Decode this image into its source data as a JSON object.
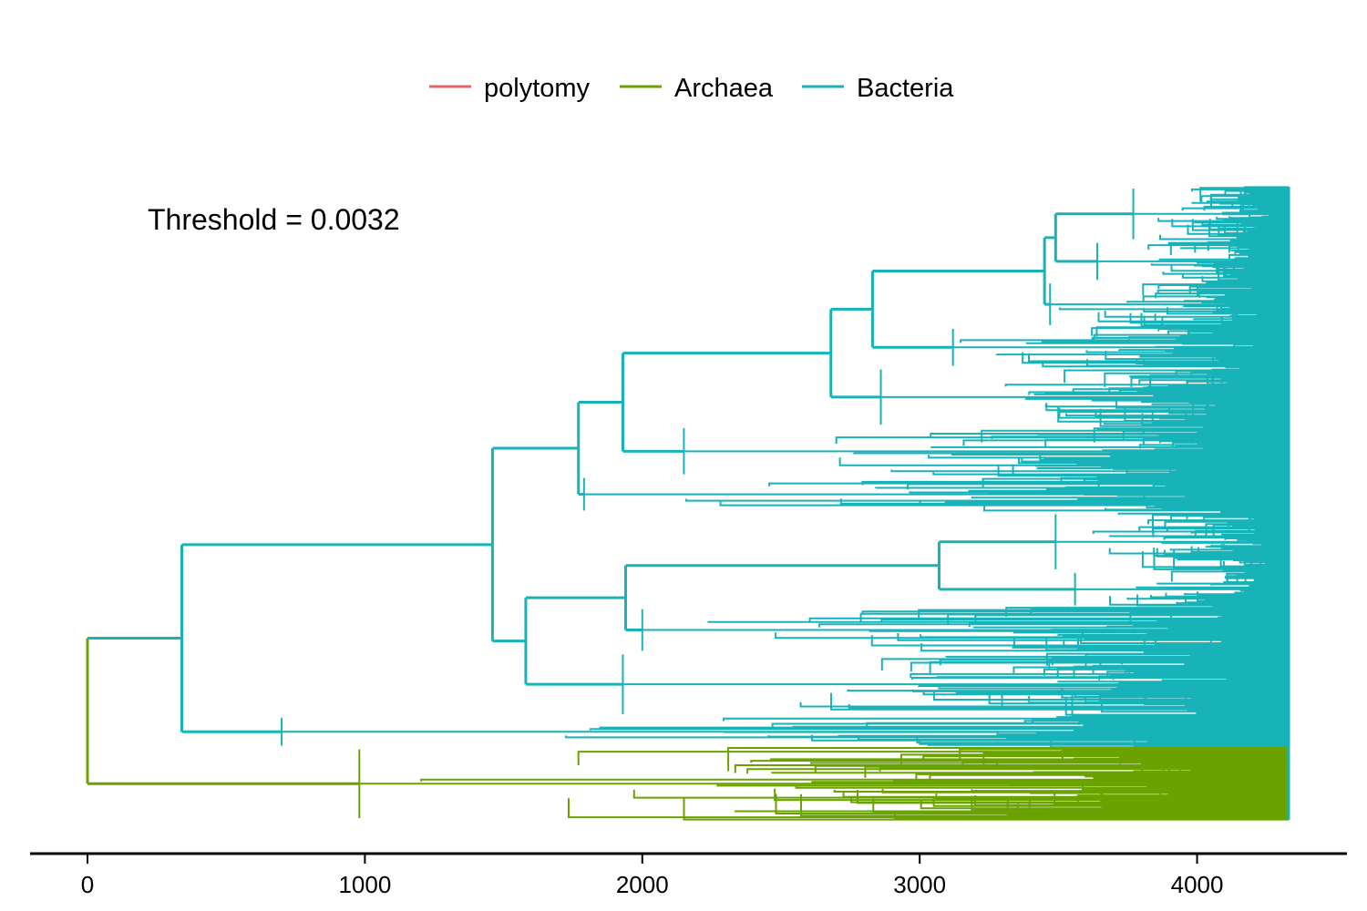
{
  "chart_data": {
    "type": "dendrogram",
    "annotation": "Threshold = 0.0032",
    "legend": {
      "placement": "top",
      "entries": [
        {
          "label": "polytomy",
          "color": "#E06666"
        },
        {
          "label": "Archaea",
          "color": "#6AA300"
        },
        {
          "label": "Bacteria",
          "color": "#17B3B8"
        }
      ]
    },
    "x_axis": {
      "range": [
        0,
        4330
      ],
      "ticks": [
        0,
        1000,
        2000,
        3000,
        4000
      ],
      "tick_labels": [
        "0",
        "1000",
        "2000",
        "3000",
        "4000"
      ]
    },
    "grid": false,
    "tip_extent": 4330,
    "tree": {
      "x": 0,
      "group": "Archaea",
      "children": [
        {
          "x": 340,
          "group": "Bacteria",
          "children": [
            {
              "x": 1460,
              "group": "Bacteria",
              "children": [
                {
                  "x": 1770,
                  "group": "Bacteria",
                  "children": [
                    {
                      "x": 1930,
                      "group": "Bacteria",
                      "children": [
                        {
                          "x": 2680,
                          "group": "Bacteria",
                          "children": [
                            {
                              "x": 2830,
                              "group": "Bacteria",
                              "children": [
                                {
                                  "x": 3450,
                                  "group": "Bacteria",
                                  "children": [
                                    {
                                      "x": 3490,
                                      "group": "Bacteria",
                                      "children": [
                                        {
                                          "x": 3770,
                                          "group": "Bacteria",
                                          "leaves": 24
                                        },
                                        {
                                          "x": 3640,
                                          "group": "Bacteria",
                                          "leaves": 18
                                        }
                                      ]
                                    },
                                    {
                                      "x": 3470,
                                      "group": "Bacteria",
                                      "leaves": 20
                                    }
                                  ]
                                },
                                {
                                  "x": 3120,
                                  "group": "Bacteria",
                                  "leaves": 18
                                }
                              ]
                            },
                            {
                              "x": 2860,
                              "group": "Bacteria",
                              "leaves": 26
                            }
                          ]
                        },
                        {
                          "x": 2150,
                          "group": "Bacteria",
                          "leaves": 22
                        }
                      ]
                    },
                    {
                      "x": 1790,
                      "group": "Bacteria",
                      "leaves": 16
                    }
                  ]
                },
                {
                  "x": 1580,
                  "group": "Bacteria",
                  "children": [
                    {
                      "x": 1940,
                      "group": "Bacteria",
                      "children": [
                        {
                          "x": 3070,
                          "group": "Bacteria",
                          "children": [
                            {
                              "x": 3490,
                              "group": "Bacteria",
                              "leaves": 26
                            },
                            {
                              "x": 3560,
                              "group": "Bacteria",
                              "leaves": 16
                            }
                          ]
                        },
                        {
                          "x": 2000,
                          "group": "Bacteria",
                          "leaves": 20
                        }
                      ]
                    },
                    {
                      "x": 1930,
                      "group": "Bacteria",
                      "leaves": 28
                    }
                  ]
                }
              ]
            },
            {
              "x": 700,
              "group": "Bacteria",
              "leaves": 14
            }
          ]
        },
        {
          "x": 980,
          "group": "Archaea",
          "leaves": 32
        }
      ]
    }
  }
}
